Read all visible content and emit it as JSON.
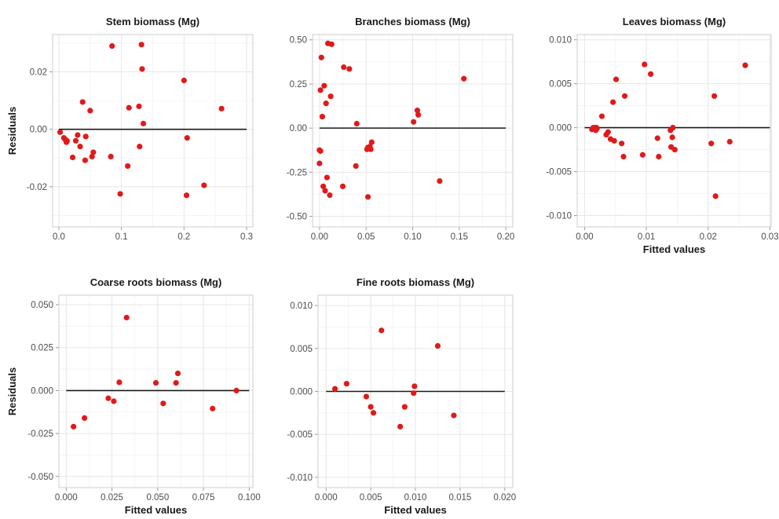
{
  "figure": {
    "y_axis_title": "Residuals",
    "x_axis_title": "Fitted values"
  },
  "colors": {
    "points": "#e01a1a",
    "zero_line": "#1a1a1a",
    "grid_major": "#e6e6e6",
    "grid_minor": "#f2f2f2",
    "panel_border": "#cccccc"
  },
  "chart_data": [
    {
      "type": "scatter",
      "title": "Stem biomass (Mg)",
      "xlabel": "",
      "ylabel": "Residuals",
      "xlim": [
        -0.01,
        0.31
      ],
      "ylim": [
        -0.034,
        0.033
      ],
      "xticks": [
        0.0,
        0.1,
        0.2,
        0.3
      ],
      "xtick_labels": [
        "0.0",
        "0.1",
        "0.2",
        "0.3"
      ],
      "yticks": [
        -0.02,
        0.0,
        0.02
      ],
      "ytick_labels": [
        "-0.02",
        "0.00",
        "0.02"
      ],
      "reference_line": 0,
      "points": [
        [
          0.002,
          -0.001
        ],
        [
          0.008,
          -0.003
        ],
        [
          0.01,
          -0.0035
        ],
        [
          0.012,
          -0.0045
        ],
        [
          0.013,
          -0.004
        ],
        [
          0.022,
          -0.0098
        ],
        [
          0.027,
          -0.004
        ],
        [
          0.03,
          -0.002
        ],
        [
          0.034,
          -0.006
        ],
        [
          0.038,
          0.0095
        ],
        [
          0.042,
          -0.0108
        ],
        [
          0.043,
          -0.0025
        ],
        [
          0.05,
          0.0065
        ],
        [
          0.053,
          -0.0095
        ],
        [
          0.055,
          -0.008
        ],
        [
          0.083,
          -0.0095
        ],
        [
          0.085,
          0.029
        ],
        [
          0.098,
          -0.0225
        ],
        [
          0.11,
          -0.0128
        ],
        [
          0.112,
          0.0075
        ],
        [
          0.128,
          0.008
        ],
        [
          0.129,
          -0.006
        ],
        [
          0.132,
          0.0295
        ],
        [
          0.133,
          0.021
        ],
        [
          0.135,
          0.002
        ],
        [
          0.2,
          0.017
        ],
        [
          0.205,
          -0.003
        ],
        [
          0.204,
          -0.023
        ],
        [
          0.232,
          -0.0195
        ],
        [
          0.26,
          0.0072
        ]
      ]
    },
    {
      "type": "scatter",
      "title": "Branches biomass (Mg)",
      "xlabel": "",
      "ylabel": "",
      "xlim": [
        -0.0075,
        0.2075
      ],
      "ylim": [
        -0.56,
        0.53
      ],
      "xticks": [
        0.0,
        0.05,
        0.1,
        0.15,
        0.2
      ],
      "xtick_labels": [
        "0.00",
        "0.05",
        "0.10",
        "0.15",
        "0.20"
      ],
      "yticks": [
        -0.5,
        -0.25,
        0.0,
        0.25,
        0.5
      ],
      "ytick_labels": [
        "-0.50",
        "-0.25",
        "0.00",
        "0.25",
        "0.50"
      ],
      "reference_line": 0,
      "points": [
        [
          0.0,
          -0.2
        ],
        [
          0.0,
          -0.125
        ],
        [
          0.001,
          -0.13
        ],
        [
          0.001,
          0.215
        ],
        [
          0.002,
          0.4
        ],
        [
          0.003,
          0.065
        ],
        [
          0.004,
          -0.33
        ],
        [
          0.005,
          0.24
        ],
        [
          0.006,
          -0.355
        ],
        [
          0.007,
          0.14
        ],
        [
          0.008,
          -0.28
        ],
        [
          0.009,
          0.48
        ],
        [
          0.011,
          -0.38
        ],
        [
          0.012,
          0.18
        ],
        [
          0.013,
          0.475
        ],
        [
          0.025,
          -0.33
        ],
        [
          0.026,
          0.345
        ],
        [
          0.032,
          0.335
        ],
        [
          0.039,
          -0.215
        ],
        [
          0.04,
          0.025
        ],
        [
          0.051,
          -0.12
        ],
        [
          0.052,
          -0.11
        ],
        [
          0.052,
          -0.39
        ],
        [
          0.054,
          -0.105
        ],
        [
          0.055,
          -0.12
        ],
        [
          0.056,
          -0.08
        ],
        [
          0.101,
          0.035
        ],
        [
          0.105,
          0.1
        ],
        [
          0.106,
          0.075
        ],
        [
          0.129,
          -0.3
        ],
        [
          0.155,
          0.28
        ]
      ]
    },
    {
      "type": "scatter",
      "title": "Leaves biomass (Mg)",
      "xlabel": "Fitted values",
      "ylabel": "",
      "xlim": [
        -0.0012,
        0.0302
      ],
      "ylim": [
        -0.0113,
        0.0106
      ],
      "xticks": [
        0.0,
        0.01,
        0.02,
        0.03
      ],
      "xtick_labels": [
        "0.00",
        "0.01",
        "0.02",
        "0.03"
      ],
      "yticks": [
        -0.01,
        -0.005,
        0.0,
        0.005,
        0.01
      ],
      "ytick_labels": [
        "-0.010",
        "-0.005",
        "0.000",
        "0.005",
        "0.010"
      ],
      "reference_line": 0,
      "points": [
        [
          0.0012,
          -0.0002
        ],
        [
          0.0014,
          0.0
        ],
        [
          0.0016,
          -0.0001
        ],
        [
          0.0017,
          0.0
        ],
        [
          0.0018,
          -0.0003
        ],
        [
          0.0019,
          0.0
        ],
        [
          0.002,
          -0.0001
        ],
        [
          0.0028,
          0.0013
        ],
        [
          0.0035,
          -0.0008
        ],
        [
          0.0038,
          -0.0005
        ],
        [
          0.0042,
          -0.0013
        ],
        [
          0.0046,
          0.0029
        ],
        [
          0.0048,
          -0.0015
        ],
        [
          0.0051,
          0.0055
        ],
        [
          0.006,
          -0.0018
        ],
        [
          0.0063,
          -0.0033
        ],
        [
          0.0065,
          0.0036
        ],
        [
          0.0094,
          -0.0031
        ],
        [
          0.0097,
          0.0072
        ],
        [
          0.0107,
          0.0061
        ],
        [
          0.0118,
          -0.0012
        ],
        [
          0.012,
          -0.0033
        ],
        [
          0.0139,
          -0.0003
        ],
        [
          0.014,
          -0.0022
        ],
        [
          0.0142,
          -0.0011
        ],
        [
          0.0143,
          0.0
        ],
        [
          0.0146,
          -0.0025
        ],
        [
          0.0205,
          -0.0018
        ],
        [
          0.021,
          0.0036
        ],
        [
          0.0212,
          -0.0078
        ],
        [
          0.0235,
          -0.0016
        ],
        [
          0.026,
          0.0071
        ]
      ]
    },
    {
      "type": "scatter",
      "title": "Coarse roots biomass (Mg)",
      "xlabel": "Fitted values",
      "ylabel": "Residuals",
      "xlim": [
        -0.004,
        0.102
      ],
      "ylim": [
        -0.0565,
        0.0555
      ],
      "xticks": [
        0.0,
        0.025,
        0.05,
        0.075,
        0.1
      ],
      "xtick_labels": [
        "0.000",
        "0.025",
        "0.050",
        "0.075",
        "0.100"
      ],
      "yticks": [
        -0.05,
        -0.025,
        0.0,
        0.025,
        0.05
      ],
      "ytick_labels": [
        "-0.050",
        "-0.025",
        "0.000",
        "0.025",
        "0.050"
      ],
      "reference_line": 0,
      "points": [
        [
          0.004,
          -0.021
        ],
        [
          0.01,
          -0.016
        ],
        [
          0.023,
          -0.0045
        ],
        [
          0.026,
          -0.0062
        ],
        [
          0.029,
          0.0048
        ],
        [
          0.033,
          0.0425
        ],
        [
          0.049,
          0.0045
        ],
        [
          0.053,
          -0.0075
        ],
        [
          0.06,
          0.0045
        ],
        [
          0.061,
          0.01
        ],
        [
          0.08,
          -0.0105
        ],
        [
          0.093,
          0.0
        ]
      ]
    },
    {
      "type": "scatter",
      "title": "Fine roots biomass (Mg)",
      "xlabel": "Fitted values",
      "ylabel": "",
      "xlim": [
        -0.0009,
        0.0209
      ],
      "ylim": [
        -0.0112,
        0.0112
      ],
      "xticks": [
        0.0,
        0.005,
        0.01,
        0.015,
        0.02
      ],
      "xtick_labels": [
        "0.000",
        "0.005",
        "0.010",
        "0.015",
        "0.020"
      ],
      "yticks": [
        -0.01,
        -0.005,
        0.0,
        0.005,
        0.01
      ],
      "ytick_labels": [
        "-0.010",
        "-0.005",
        "0.000",
        "0.005",
        "0.010"
      ],
      "reference_line": 0,
      "points": [
        [
          0.001,
          0.0003
        ],
        [
          0.0023,
          0.0009
        ],
        [
          0.0045,
          -0.0006
        ],
        [
          0.005,
          -0.0018
        ],
        [
          0.0053,
          -0.0025
        ],
        [
          0.0062,
          0.0071
        ],
        [
          0.0083,
          -0.0041
        ],
        [
          0.0088,
          -0.0018
        ],
        [
          0.0098,
          -0.0002
        ],
        [
          0.0099,
          0.0006
        ],
        [
          0.0125,
          0.0053
        ],
        [
          0.0143,
          -0.0028
        ]
      ]
    }
  ]
}
